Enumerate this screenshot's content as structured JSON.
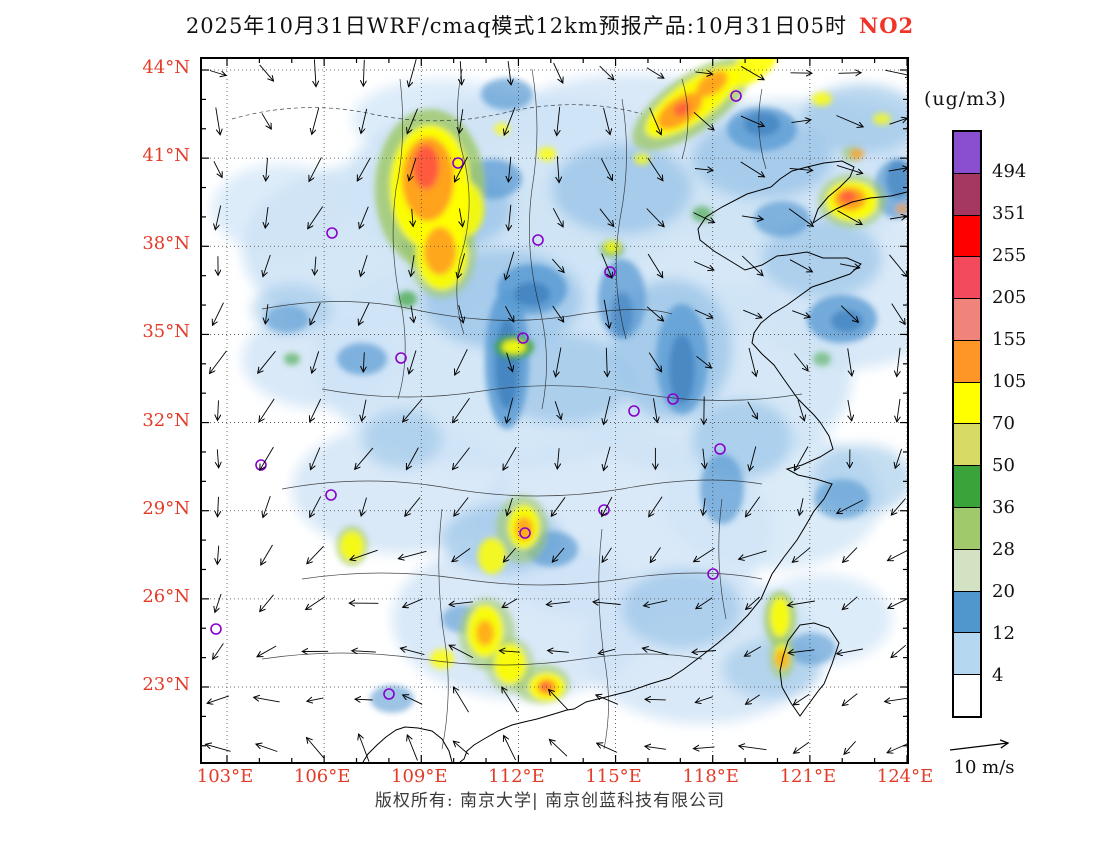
{
  "title": {
    "main": "2025年10月31日WRF/cmaq模式12km预报产品:10月31日05时",
    "pollutant": "NO2"
  },
  "axes": {
    "x_ticks": [
      "103°E",
      "106°E",
      "109°E",
      "112°E",
      "115°E",
      "118°E",
      "121°E",
      "124°E"
    ],
    "y_ticks": [
      "44°N",
      "41°N",
      "38°N",
      "35°N",
      "32°N",
      "29°N",
      "26°N",
      "23°N"
    ]
  },
  "legend": {
    "unit": "(ug/m3)",
    "boundaries": [
      "494",
      "351",
      "255",
      "205",
      "155",
      "105",
      "70",
      "50",
      "36",
      "28",
      "20",
      "12",
      "4"
    ],
    "colors_top_to_bottom": [
      "#8a4fd0",
      "#a53860",
      "#ff0000",
      "#f34a5e",
      "#f0837a",
      "#fd9527",
      "#ffff00",
      "#d8da66",
      "#3aa33a",
      "#a0c96c",
      "#d4e2c4",
      "#4f97cd",
      "#b5d8f0",
      "#ffffff"
    ]
  },
  "wind_scale": {
    "label": "10 m/s"
  },
  "footer": {
    "text": "版权所有: 南京大学| 南京创蓝科技有限公司"
  },
  "colors": {
    "axis_label_red": "#e23b28",
    "pollutant_red": "#f03427"
  },
  "chart_data": {
    "type": "heatmap",
    "title": "2025年10月31日WRF/cmaq模式12km预报产品:10月31日05时 NO2",
    "variable": "NO2",
    "unit": "ug/m3",
    "x_ticks": [
      "103°E",
      "106°E",
      "109°E",
      "112°E",
      "115°E",
      "118°E",
      "121°E",
      "124°E"
    ],
    "y_ticks": [
      "44°N",
      "41°N",
      "38°N",
      "35°N",
      "32°N",
      "29°N",
      "26°N",
      "23°N"
    ],
    "xlim": [
      "103°E",
      "124°E"
    ],
    "ylim": [
      "23°N",
      "44°N"
    ],
    "levels": [
      4,
      12,
      20,
      28,
      36,
      50,
      70,
      105,
      155,
      205,
      255,
      351,
      494
    ],
    "level_colors_low_to_high": [
      "#ffffff",
      "#b5d8f0",
      "#4f97cd",
      "#d4e2c4",
      "#a0c96c",
      "#3aa33a",
      "#d8da66",
      "#ffff00",
      "#fd9527",
      "#f0837a",
      "#f34a5e",
      "#ff0000",
      "#a53860",
      "#8a4fd0"
    ],
    "overlays": [
      "wind vector field with 10 m/s reference arrow",
      "purple city marker circles",
      "coastline and province boundaries",
      "dotted lat/lon graticule every 3 degrees"
    ]
  }
}
